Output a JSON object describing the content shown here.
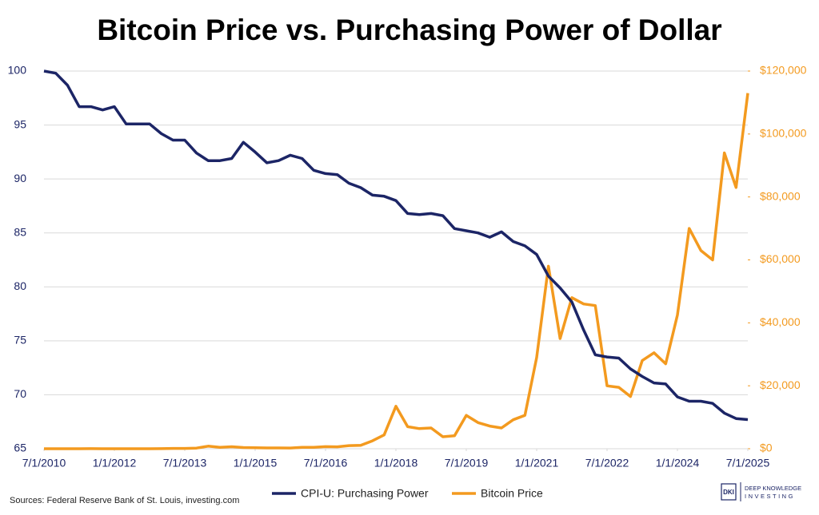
{
  "chart_data": {
    "type": "line",
    "title": "Bitcoin Price vs. Purchasing Power of Dollar",
    "source": "Sources: Federal Reserve Bank of St. Louis, investing.com",
    "logo": {
      "mark": "DKI",
      "line1": "DEEP KNOWLEDGE",
      "line2": "INVESTING"
    },
    "x": [
      2010.5,
      2010.75,
      2011,
      2011.25,
      2011.5,
      2011.75,
      2012,
      2012.25,
      2012.5,
      2012.75,
      2013,
      2013.25,
      2013.5,
      2013.75,
      2014,
      2014.25,
      2014.5,
      2014.75,
      2015,
      2015.25,
      2015.5,
      2015.75,
      2016,
      2016.25,
      2016.5,
      2016.75,
      2017,
      2017.25,
      2017.5,
      2017.75,
      2018,
      2018.25,
      2018.5,
      2018.75,
      2019,
      2019.25,
      2019.5,
      2019.75,
      2020,
      2020.25,
      2020.5,
      2020.75,
      2021,
      2021.25,
      2021.5,
      2021.75,
      2022,
      2022.25,
      2022.5,
      2022.75,
      2023,
      2023.25,
      2023.5,
      2023.75,
      2024,
      2024.25,
      2024.5,
      2024.75,
      2025,
      2025.25,
      2025.5
    ],
    "series": [
      {
        "name": "CPI-U: Purchasing Power",
        "color": "#1c2566",
        "axis": "y",
        "values": [
          100,
          99.8,
          98.7,
          96.7,
          96.7,
          96.4,
          96.7,
          95.1,
          95.1,
          95.1,
          94.2,
          93.6,
          93.6,
          92.4,
          91.7,
          91.7,
          91.9,
          93.4,
          92.5,
          91.5,
          91.7,
          92.2,
          91.9,
          90.8,
          90.5,
          90.4,
          89.6,
          89.2,
          88.5,
          88.4,
          88.0,
          86.8,
          86.7,
          86.8,
          86.6,
          85.4,
          85.2,
          85.0,
          84.6,
          85.1,
          84.2,
          83.8,
          83.0,
          81.0,
          79.9,
          78.6,
          76.0,
          73.7,
          73.5,
          73.4,
          72.4,
          71.7,
          71.1,
          71.0,
          69.8,
          69.4,
          69.4,
          69.2,
          68.3,
          67.8,
          67.7
        ]
      },
      {
        "name": "Bitcoin Price",
        "color": "#f39a1f",
        "axis": "y2",
        "values": [
          0.07,
          0.2,
          0.3,
          0.8,
          15,
          5,
          5,
          5,
          7,
          12,
          13,
          100,
          90,
          200,
          800,
          450,
          630,
          390,
          310,
          250,
          260,
          240,
          430,
          420,
          670,
          610,
          1000,
          1100,
          2500,
          4400,
          13500,
          7000,
          6400,
          6600,
          3800,
          4100,
          10600,
          8300,
          7200,
          6600,
          9200,
          10600,
          29000,
          58000,
          35000,
          48000,
          46000,
          45500,
          20000,
          19500,
          16600,
          28000,
          30500,
          27000,
          42500,
          70000,
          63000,
          60000,
          94000,
          83000,
          113000
        ]
      }
    ],
    "xlim": [
      2010.5,
      2025.5
    ],
    "xticks": [
      {
        "value": 2010.5,
        "label": "7/1/2010"
      },
      {
        "value": 2012,
        "label": "1/1/2012"
      },
      {
        "value": 2013.5,
        "label": "7/1/2013"
      },
      {
        "value": 2015,
        "label": "1/1/2015"
      },
      {
        "value": 2016.5,
        "label": "7/1/2016"
      },
      {
        "value": 2018,
        "label": "1/1/2018"
      },
      {
        "value": 2019.5,
        "label": "7/1/2019"
      },
      {
        "value": 2021,
        "label": "1/1/2021"
      },
      {
        "value": 2022.5,
        "label": "7/1/2022"
      },
      {
        "value": 2024,
        "label": "1/1/2024"
      },
      {
        "value": 2025.5,
        "label": "7/1/2025"
      }
    ],
    "ylim": [
      65,
      100
    ],
    "yticks": [
      65,
      70,
      75,
      80,
      85,
      90,
      95,
      100
    ],
    "y2lim": [
      0,
      120000
    ],
    "y2ticks": [
      {
        "value": 0,
        "label": "$0"
      },
      {
        "value": 20000,
        "label": "$20,000"
      },
      {
        "value": 40000,
        "label": "$40,000"
      },
      {
        "value": 60000,
        "label": "$60,000"
      },
      {
        "value": 80000,
        "label": "$80,000"
      },
      {
        "value": 100000,
        "label": "$100,000"
      },
      {
        "value": 120000,
        "label": "$120,000"
      }
    ],
    "grid": true,
    "legend": "bottom"
  }
}
